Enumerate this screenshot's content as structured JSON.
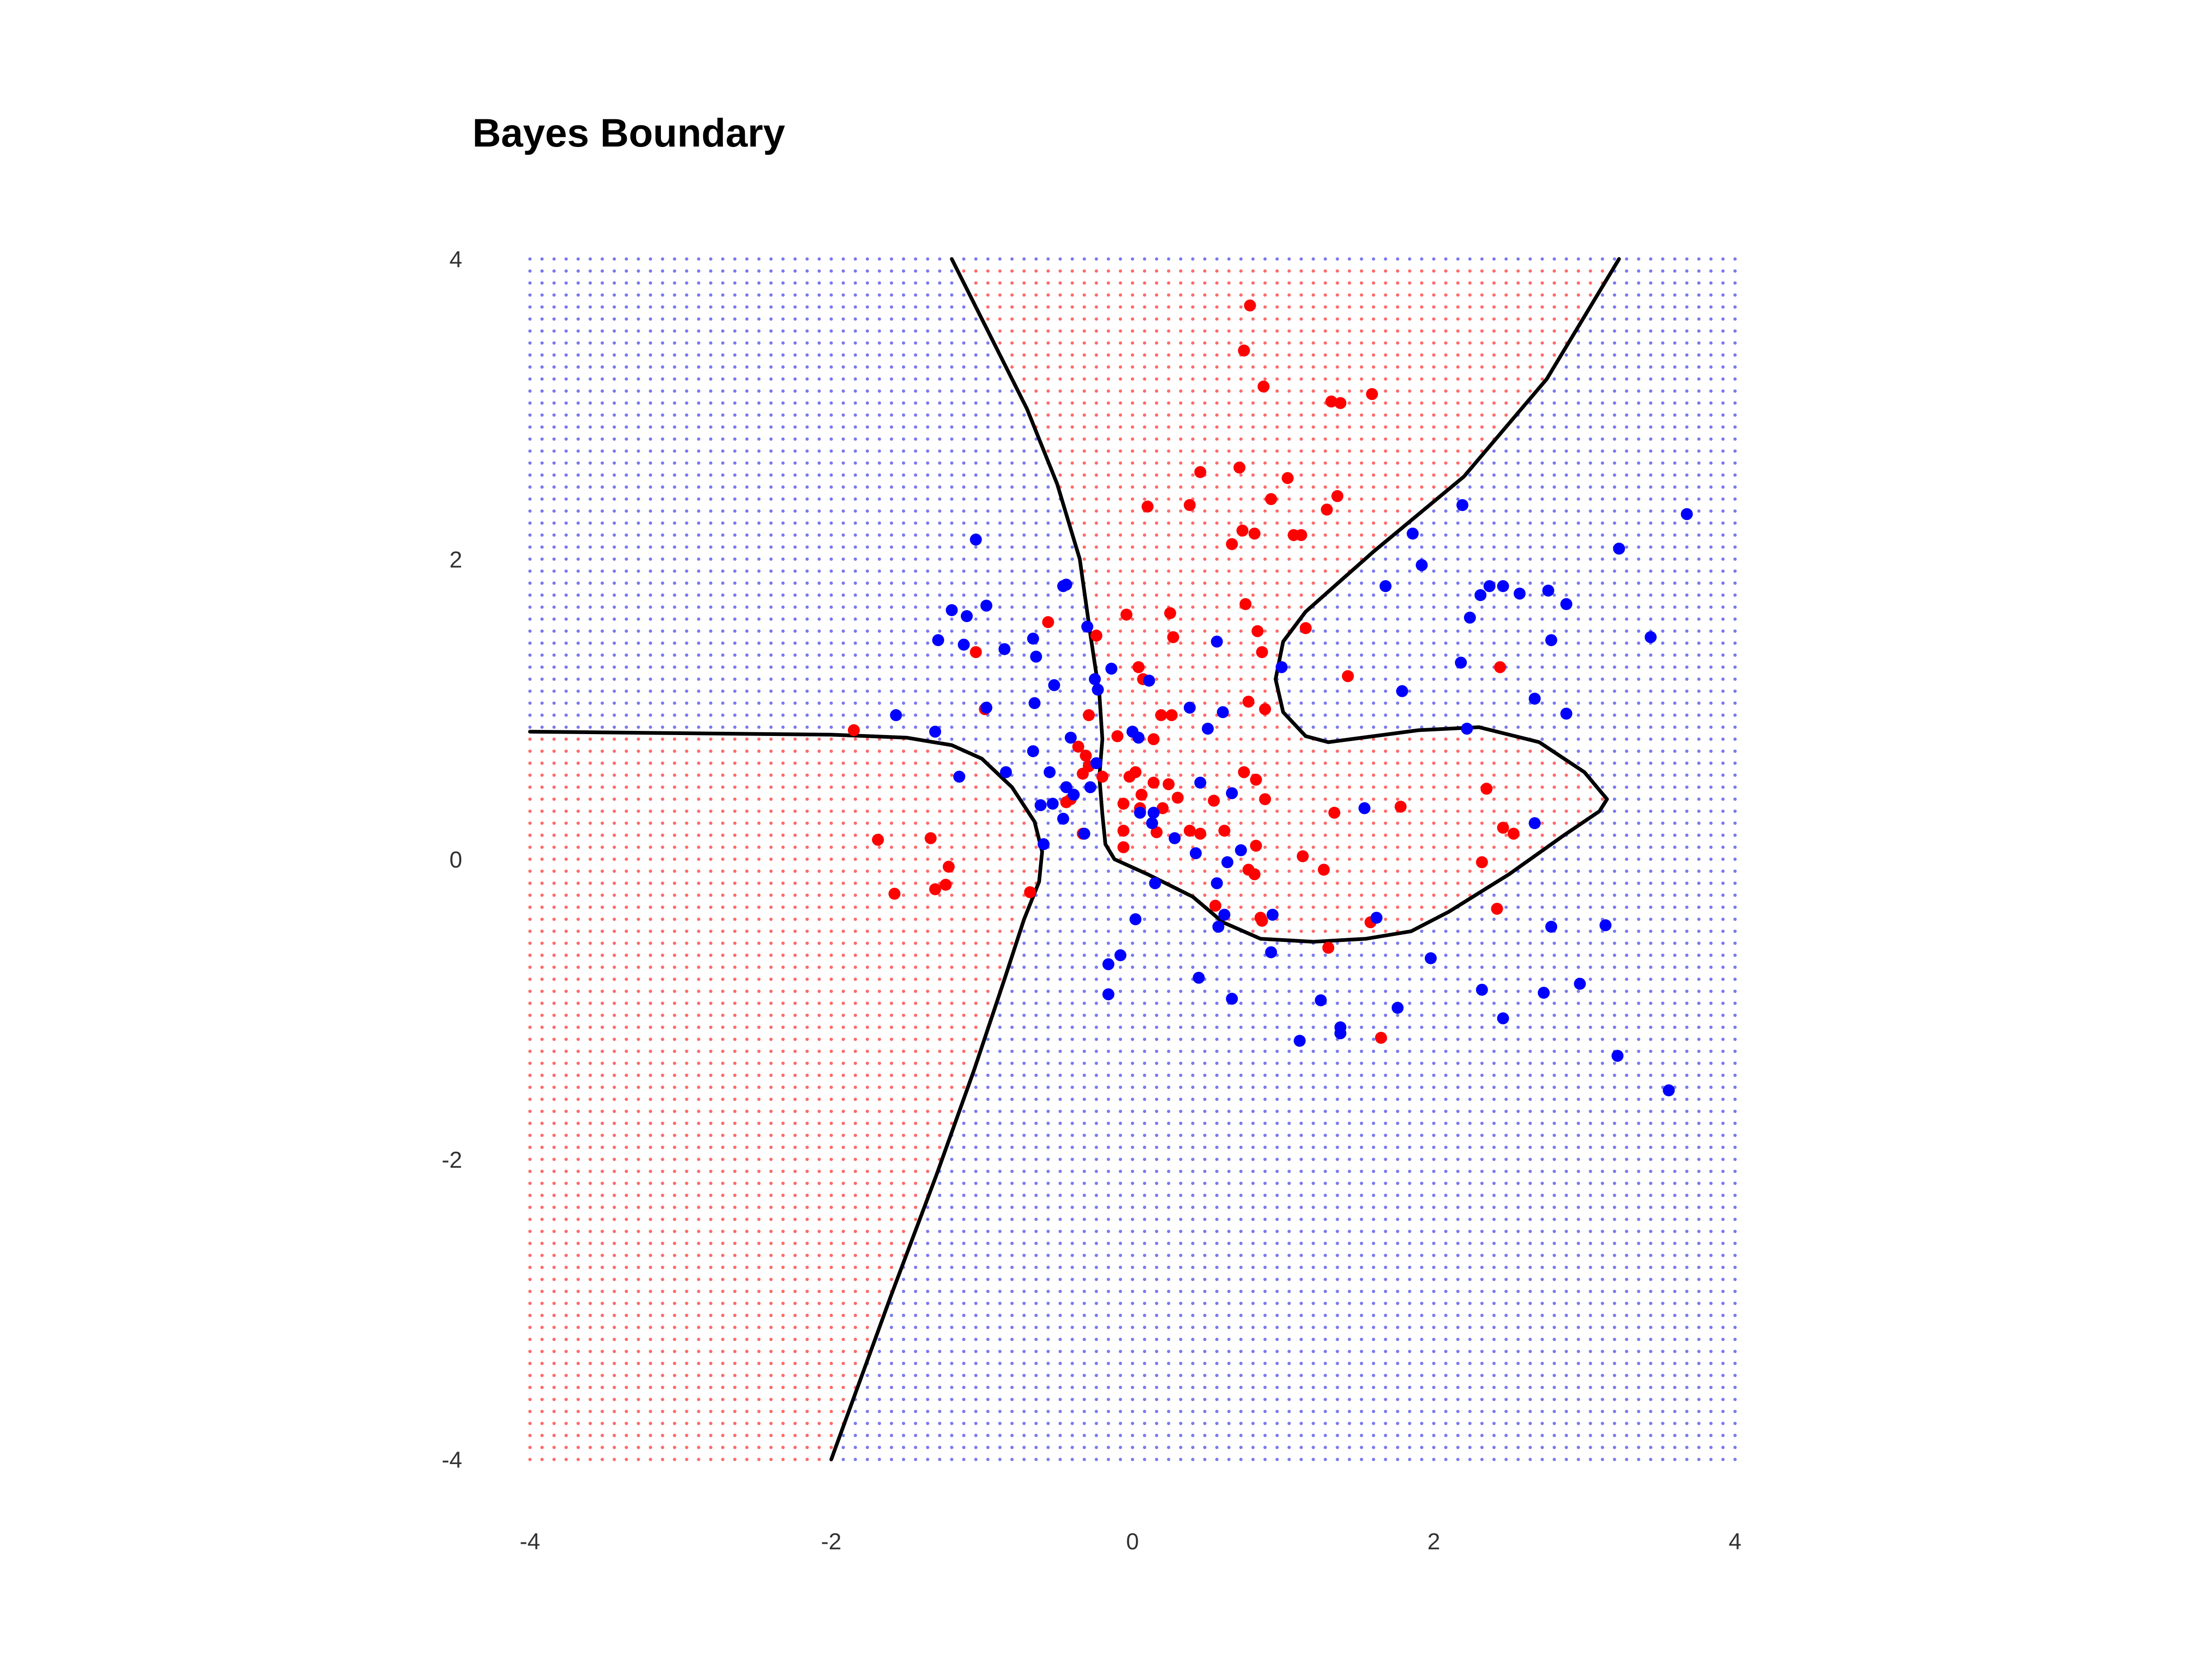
{
  "chart_data": {
    "type": "scatter",
    "title": "Bayes Boundary",
    "xlabel": "",
    "ylabel": "",
    "xlim": [
      -4,
      4
    ],
    "ylim": [
      -4,
      4
    ],
    "xticks": [
      "-4",
      "-2",
      "0",
      "2",
      "4"
    ],
    "yticks": [
      "4",
      "2",
      "0",
      "-2",
      "-4"
    ],
    "grid": false,
    "legend": "none",
    "colors": {
      "red_class": "#ff0000",
      "blue_class": "#0000ff",
      "red_region": "#ff6a6a",
      "blue_region": "#7a7aee",
      "boundary": "#000000"
    },
    "series": [
      {
        "color": "red",
        "points": [
          [
            0.78,
            3.69
          ],
          [
            0.74,
            3.39
          ],
          [
            1.59,
            3.1
          ],
          [
            1.32,
            3.05
          ],
          [
            1.38,
            3.04
          ],
          [
            0.87,
            3.15
          ],
          [
            0.45,
            2.58
          ],
          [
            0.71,
            2.61
          ],
          [
            1.03,
            2.54
          ],
          [
            0.92,
            2.4
          ],
          [
            1.36,
            2.42
          ],
          [
            1.29,
            2.33
          ],
          [
            0.38,
            2.36
          ],
          [
            0.1,
            2.35
          ],
          [
            0.73,
            2.19
          ],
          [
            0.81,
            2.17
          ],
          [
            1.07,
            2.16
          ],
          [
            1.12,
            2.16
          ],
          [
            0.66,
            2.1
          ],
          [
            0.75,
            1.7
          ],
          [
            0.25,
            1.64
          ],
          [
            0.83,
            1.52
          ],
          [
            1.15,
            1.54
          ],
          [
            -0.56,
            1.58
          ],
          [
            -0.04,
            1.63
          ],
          [
            -0.24,
            1.49
          ],
          [
            0.27,
            1.48
          ],
          [
            -1.04,
            1.38
          ],
          [
            0.86,
            1.38
          ],
          [
            0.07,
            1.2
          ],
          [
            0.04,
            1.28
          ],
          [
            2.44,
            1.28
          ],
          [
            1.43,
            1.22
          ],
          [
            0.77,
            1.05
          ],
          [
            0.88,
            1.0
          ],
          [
            0.19,
            0.96
          ],
          [
            0.26,
            0.96
          ],
          [
            -0.98,
            1.0
          ],
          [
            -1.85,
            0.86
          ],
          [
            -0.29,
            0.96
          ],
          [
            0.14,
            0.8
          ],
          [
            -0.36,
            0.75
          ],
          [
            -0.31,
            0.69
          ],
          [
            -0.1,
            0.82
          ],
          [
            -0.29,
            0.62
          ],
          [
            -0.33,
            0.57
          ],
          [
            0.02,
            0.58
          ],
          [
            0.74,
            0.58
          ],
          [
            -0.02,
            0.55
          ],
          [
            0.14,
            0.51
          ],
          [
            0.82,
            0.53
          ],
          [
            0.24,
            0.5
          ],
          [
            2.35,
            0.47
          ],
          [
            -0.2,
            0.55
          ],
          [
            -0.41,
            0.4
          ],
          [
            -0.44,
            0.38
          ],
          [
            0.06,
            0.43
          ],
          [
            0.3,
            0.41
          ],
          [
            0.54,
            0.39
          ],
          [
            0.88,
            0.4
          ],
          [
            -0.06,
            0.37
          ],
          [
            0.05,
            0.34
          ],
          [
            0.2,
            0.34
          ],
          [
            1.78,
            0.35
          ],
          [
            1.34,
            0.31
          ],
          [
            2.46,
            0.21
          ],
          [
            2.53,
            0.17
          ],
          [
            0.38,
            0.19
          ],
          [
            0.45,
            0.17
          ],
          [
            0.61,
            0.19
          ],
          [
            -0.06,
            0.19
          ],
          [
            0.16,
            0.18
          ],
          [
            0.82,
            0.09
          ],
          [
            -1.69,
            0.13
          ],
          [
            -1.34,
            0.14
          ],
          [
            -0.33,
            0.17
          ],
          [
            -0.06,
            0.08
          ],
          [
            1.13,
            0.02
          ],
          [
            2.32,
            -0.02
          ],
          [
            -1.22,
            -0.05
          ],
          [
            1.27,
            -0.07
          ],
          [
            0.77,
            -0.07
          ],
          [
            0.81,
            -0.1
          ],
          [
            -1.24,
            -0.17
          ],
          [
            -1.31,
            -0.2
          ],
          [
            -1.58,
            -0.23
          ],
          [
            -0.68,
            -0.22
          ],
          [
            0.55,
            -0.31
          ],
          [
            0.85,
            -0.39
          ],
          [
            0.86,
            -0.41
          ],
          [
            2.42,
            -0.33
          ],
          [
            1.58,
            -0.42
          ],
          [
            1.3,
            -0.59
          ],
          [
            1.65,
            -1.19
          ]
        ]
      },
      {
        "color": "blue",
        "points": [
          [
            3.68,
            2.3
          ],
          [
            2.19,
            2.36
          ],
          [
            -1.04,
            2.13
          ],
          [
            1.86,
            2.17
          ],
          [
            3.23,
            2.07
          ],
          [
            1.92,
            1.96
          ],
          [
            1.68,
            1.82
          ],
          [
            2.37,
            1.82
          ],
          [
            2.46,
            1.82
          ],
          [
            2.31,
            1.76
          ],
          [
            2.57,
            1.77
          ],
          [
            2.76,
            1.79
          ],
          [
            2.88,
            1.7
          ],
          [
            -0.46,
            1.82
          ],
          [
            -0.44,
            1.83
          ],
          [
            -0.97,
            1.69
          ],
          [
            -1.2,
            1.66
          ],
          [
            -1.1,
            1.62
          ],
          [
            2.24,
            1.61
          ],
          [
            -0.3,
            1.55
          ],
          [
            -0.66,
            1.47
          ],
          [
            -1.29,
            1.46
          ],
          [
            0.56,
            1.45
          ],
          [
            3.44,
            1.48
          ],
          [
            2.78,
            1.46
          ],
          [
            -0.85,
            1.4
          ],
          [
            -1.12,
            1.43
          ],
          [
            -0.64,
            1.35
          ],
          [
            2.18,
            1.31
          ],
          [
            -0.14,
            1.27
          ],
          [
            0.99,
            1.28
          ],
          [
            -0.25,
            1.2
          ],
          [
            -0.23,
            1.13
          ],
          [
            0.11,
            1.19
          ],
          [
            -0.52,
            1.16
          ],
          [
            1.79,
            1.12
          ],
          [
            2.67,
            1.07
          ],
          [
            0.38,
            1.01
          ],
          [
            -0.65,
            1.04
          ],
          [
            -0.97,
            1.01
          ],
          [
            2.88,
            0.97
          ],
          [
            0.6,
            0.98
          ],
          [
            -1.57,
            0.96
          ],
          [
            0.0,
            0.85
          ],
          [
            0.5,
            0.87
          ],
          [
            -1.31,
            0.85
          ],
          [
            2.22,
            0.87
          ],
          [
            -0.41,
            0.81
          ],
          [
            0.04,
            0.81
          ],
          [
            -0.66,
            0.72
          ],
          [
            -0.24,
            0.64
          ],
          [
            -0.84,
            0.58
          ],
          [
            -0.55,
            0.58
          ],
          [
            -1.15,
            0.55
          ],
          [
            0.45,
            0.51
          ],
          [
            -0.28,
            0.48
          ],
          [
            -0.44,
            0.48
          ],
          [
            -0.39,
            0.43
          ],
          [
            0.66,
            0.44
          ],
          [
            -0.53,
            0.37
          ],
          [
            -0.61,
            0.36
          ],
          [
            0.05,
            0.31
          ],
          [
            0.14,
            0.31
          ],
          [
            1.54,
            0.34
          ],
          [
            -0.46,
            0.27
          ],
          [
            0.13,
            0.24
          ],
          [
            2.67,
            0.24
          ],
          [
            -0.32,
            0.17
          ],
          [
            0.28,
            0.14
          ],
          [
            -0.59,
            0.1
          ],
          [
            0.72,
            0.06
          ],
          [
            0.42,
            0.04
          ],
          [
            0.63,
            -0.02
          ],
          [
            0.56,
            -0.16
          ],
          [
            0.15,
            -0.16
          ],
          [
            0.61,
            -0.37
          ],
          [
            0.93,
            -0.37
          ],
          [
            0.02,
            -0.4
          ],
          [
            1.62,
            -0.39
          ],
          [
            0.57,
            -0.45
          ],
          [
            2.78,
            -0.45
          ],
          [
            3.14,
            -0.44
          ],
          [
            -0.08,
            -0.64
          ],
          [
            -0.16,
            -0.7
          ],
          [
            0.92,
            -0.62
          ],
          [
            1.98,
            -0.66
          ],
          [
            0.44,
            -0.79
          ],
          [
            2.97,
            -0.83
          ],
          [
            2.32,
            -0.87
          ],
          [
            -0.16,
            -0.9
          ],
          [
            0.66,
            -0.93
          ],
          [
            2.73,
            -0.89
          ],
          [
            1.25,
            -0.94
          ],
          [
            1.76,
            -0.99
          ],
          [
            2.46,
            -1.06
          ],
          [
            1.38,
            -1.12
          ],
          [
            1.38,
            -1.16
          ],
          [
            1.11,
            -1.21
          ],
          [
            3.22,
            -1.31
          ],
          [
            3.56,
            -1.54
          ]
        ]
      }
    ],
    "boundary_curves": [
      [
        [
          -1.2,
          4.0
        ],
        [
          -0.95,
          3.5
        ],
        [
          -0.7,
          3.0
        ],
        [
          -0.5,
          2.5
        ],
        [
          -0.35,
          2.0
        ],
        [
          -0.28,
          1.5
        ],
        [
          -0.22,
          1.1
        ],
        [
          -0.2,
          0.8
        ],
        [
          -0.22,
          0.55
        ],
        [
          -0.2,
          0.3
        ],
        [
          -0.18,
          0.1
        ],
        [
          -0.12,
          0.0
        ],
        [
          0.1,
          -0.1
        ],
        [
          0.4,
          -0.25
        ],
        [
          0.6,
          -0.42
        ],
        [
          0.85,
          -0.53
        ],
        [
          1.2,
          -0.55
        ],
        [
          1.55,
          -0.53
        ],
        [
          1.85,
          -0.48
        ],
        [
          2.1,
          -0.35
        ],
        [
          2.5,
          -0.1
        ],
        [
          2.85,
          0.15
        ],
        [
          3.1,
          0.32
        ],
        [
          3.15,
          0.4
        ],
        [
          3.0,
          0.58
        ],
        [
          2.7,
          0.78
        ],
        [
          2.3,
          0.88
        ],
        [
          1.9,
          0.86
        ],
        [
          1.6,
          0.82
        ],
        [
          1.45,
          0.8
        ],
        [
          1.3,
          0.78
        ],
        [
          1.15,
          0.82
        ],
        [
          1.0,
          0.98
        ],
        [
          0.95,
          1.2
        ],
        [
          1.0,
          1.45
        ],
        [
          1.15,
          1.65
        ],
        [
          1.6,
          2.05
        ],
        [
          2.2,
          2.55
        ],
        [
          2.75,
          3.2
        ],
        [
          3.23,
          4.0
        ]
      ],
      [
        [
          -4.0,
          0.85
        ],
        [
          -3.0,
          0.84
        ],
        [
          -2.0,
          0.83
        ],
        [
          -1.5,
          0.81
        ],
        [
          -1.2,
          0.76
        ],
        [
          -1.0,
          0.67
        ],
        [
          -0.8,
          0.48
        ],
        [
          -0.65,
          0.25
        ],
        [
          -0.6,
          0.05
        ],
        [
          -0.62,
          -0.15
        ],
        [
          -0.72,
          -0.4
        ],
        [
          -0.85,
          -0.8
        ],
        [
          -1.05,
          -1.4
        ],
        [
          -1.3,
          -2.1
        ],
        [
          -1.6,
          -2.9
        ],
        [
          -2.0,
          -4.0
        ]
      ]
    ]
  }
}
